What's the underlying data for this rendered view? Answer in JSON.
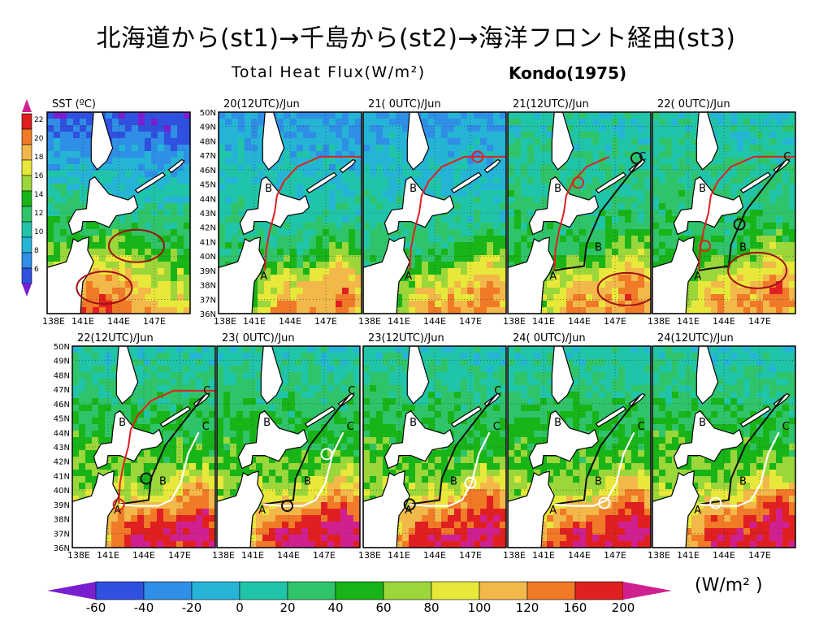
{
  "header": {
    "title": "北海道から(st1)→千島から(st2)→海洋フロント経由(st3)",
    "subtitle_left": "Total Heat Flux(W/m²)",
    "subtitle_right": "Kondo(1975)"
  },
  "sst_panel": {
    "title": "SST (ºC)",
    "scale_ticks": [
      "22",
      "20",
      "18",
      "16",
      "14",
      "12",
      "10",
      "8",
      "6"
    ],
    "x_ticks": [
      "138E",
      "141E",
      "144E",
      "147E"
    ]
  },
  "top_row_panels": [
    {
      "title": "20(12UTC)/Jun"
    },
    {
      "title": "21( 0UTC)/Jun"
    },
    {
      "title": "21(12UTC)/Jun"
    },
    {
      "title": "22( 0UTC)/Jun"
    }
  ],
  "bottom_row_panels": [
    {
      "title": "22(12UTC)/Jun"
    },
    {
      "title": "23( 0UTC)/Jun"
    },
    {
      "title": "23(12UTC)/Jun"
    },
    {
      "title": "24( 0UTC)/Jun"
    },
    {
      "title": "24(12UTC)/Jun"
    }
  ],
  "lat_ticks": [
    "50N",
    "49N",
    "48N",
    "47N",
    "46N",
    "45N",
    "44N",
    "43N",
    "42N",
    "41N",
    "40N",
    "39N",
    "38N",
    "37N",
    "36N"
  ],
  "lon_ticks": [
    "138E",
    "141E",
    "144E",
    "147E"
  ],
  "point_labels": [
    "A",
    "B",
    "C"
  ],
  "colorbar": {
    "labels": [
      "-60",
      "-40",
      "-20",
      "0",
      "20",
      "40",
      "60",
      "80",
      "100",
      "120",
      "160",
      "200"
    ],
    "unit": "(W/m² )",
    "colors": [
      "#7a1fd0",
      "#3050e0",
      "#2f8ee6",
      "#25b4d6",
      "#20c4a8",
      "#30c46a",
      "#18b418",
      "#9bd63a",
      "#e8e83a",
      "#f2b84a",
      "#f07a28",
      "#e02020",
      "#d02090"
    ]
  },
  "track_colors": {
    "st1": "#e02020",
    "st2": "#111111",
    "st3": "#ffffff"
  }
}
